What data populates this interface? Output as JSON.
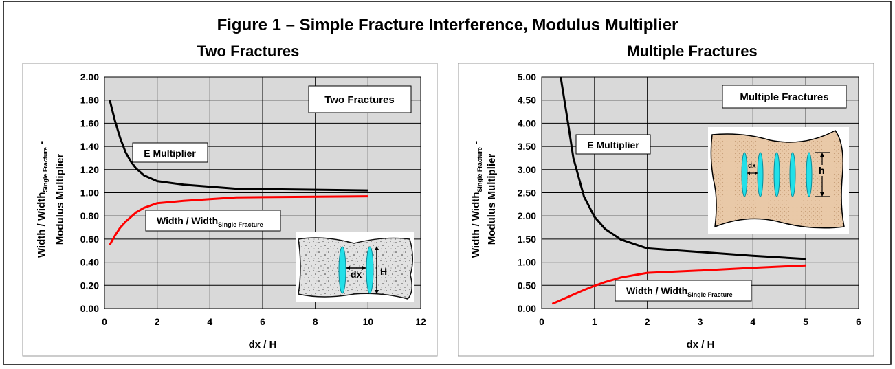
{
  "figure": {
    "title": "Figure 1 – Simple Fracture Interference, Modulus Multiplier"
  },
  "chart_data": [
    {
      "type": "line",
      "title": "Two Fractures",
      "xlabel": "dx / H",
      "ylabel_top": "Modulus Multiplier",
      "ylabel_bottom_main": "Width / Width",
      "ylabel_bottom_sub": "Single Fracture",
      "ylabel_bottom_tail": " -",
      "xlim": [
        0,
        12
      ],
      "ylim": [
        0,
        2
      ],
      "xticks": [
        "0",
        "2",
        "4",
        "6",
        "8",
        "10",
        "12"
      ],
      "yticks": [
        "0.00",
        "0.20",
        "0.40",
        "0.60",
        "0.80",
        "1.00",
        "1.20",
        "1.40",
        "1.60",
        "1.80",
        "2.00"
      ],
      "grid": true,
      "legend_box": "Two Fractures",
      "series": [
        {
          "label_main": "E Multiplier",
          "color": "#000000",
          "x": [
            0.2,
            0.4,
            0.6,
            0.8,
            1.0,
            1.2,
            1.5,
            2.0,
            3.0,
            5.0,
            10.0
          ],
          "y": [
            1.8,
            1.62,
            1.47,
            1.35,
            1.27,
            1.21,
            1.15,
            1.1,
            1.07,
            1.035,
            1.02
          ]
        },
        {
          "label_main": "Width / Width",
          "label_sub": "Single Fracture",
          "color": "#ff0000",
          "x": [
            0.2,
            0.4,
            0.6,
            0.8,
            1.0,
            1.2,
            1.5,
            2.0,
            3.0,
            5.0,
            10.0
          ],
          "y": [
            0.55,
            0.63,
            0.7,
            0.75,
            0.79,
            0.83,
            0.87,
            0.91,
            0.93,
            0.96,
            0.97
          ]
        }
      ],
      "inset": {
        "dx_label": "dx",
        "h_label": "H"
      }
    },
    {
      "type": "line",
      "title": "Multiple Fractures",
      "xlabel": "dx / H",
      "ylabel_top": "Modulus Multiplier",
      "ylabel_bottom_main": "Width / Width",
      "ylabel_bottom_sub": "Single Fracture",
      "ylabel_bottom_tail": " -",
      "xlim": [
        0,
        6
      ],
      "ylim": [
        0,
        5
      ],
      "xticks": [
        "0",
        "1",
        "2",
        "3",
        "4",
        "5",
        "6"
      ],
      "yticks": [
        "0.00",
        "0.50",
        "1.00",
        "1.50",
        "2.00",
        "2.50",
        "3.00",
        "3.50",
        "4.00",
        "4.50",
        "5.00"
      ],
      "grid": true,
      "legend_box": "Multiple Fractures",
      "series": [
        {
          "label_main": "E Multiplier",
          "color": "#000000",
          "x": [
            0.36,
            0.5,
            0.6,
            0.8,
            1.0,
            1.2,
            1.5,
            2.0,
            3.0,
            4.0,
            5.0
          ],
          "y": [
            5.0,
            4.0,
            3.25,
            2.42,
            1.98,
            1.72,
            1.49,
            1.3,
            1.22,
            1.14,
            1.07
          ]
        },
        {
          "label_main": "Width / Width",
          "label_sub": "Single Fracture",
          "color": "#ff0000",
          "x": [
            0.2,
            0.4,
            0.6,
            0.8,
            1.0,
            1.2,
            1.5,
            2.0,
            3.0,
            4.0,
            5.0
          ],
          "y": [
            0.1,
            0.2,
            0.3,
            0.4,
            0.49,
            0.57,
            0.67,
            0.77,
            0.82,
            0.88,
            0.93
          ]
        }
      ],
      "inset": {
        "dx_label": "dx",
        "h_label": "h"
      }
    }
  ]
}
